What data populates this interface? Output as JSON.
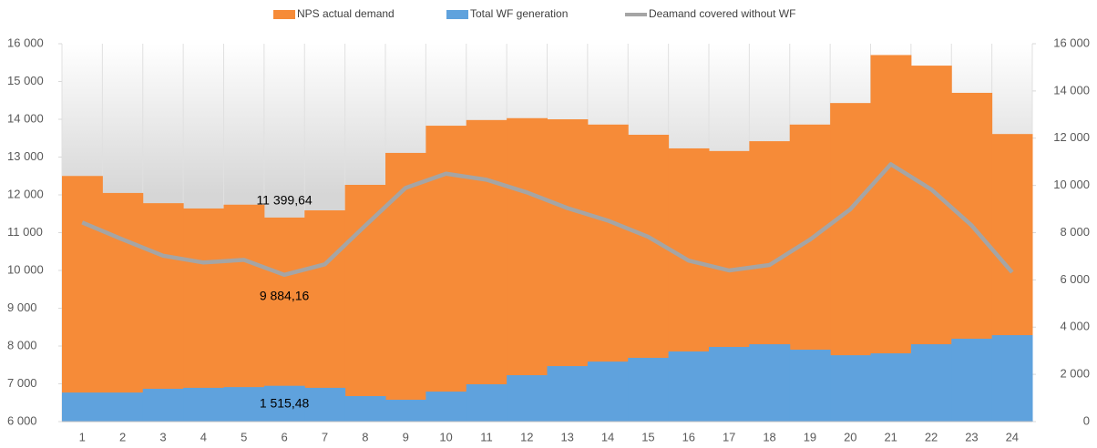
{
  "chart_data": {
    "type": "bar",
    "categories": [
      "1",
      "2",
      "3",
      "4",
      "5",
      "6",
      "7",
      "8",
      "9",
      "10",
      "11",
      "12",
      "13",
      "14",
      "15",
      "16",
      "17",
      "18",
      "19",
      "20",
      "21",
      "22",
      "23",
      "24"
    ],
    "series": [
      {
        "name": "NPS actual demand",
        "color": "#f68b38",
        "type": "bar",
        "values": [
          12500,
          12050,
          11780,
          11640,
          11740,
          11399.64,
          11590,
          12265,
          13110,
          13830,
          13980,
          14030,
          14000,
          13860,
          13590,
          13230,
          13160,
          13420,
          13860,
          14430,
          15700,
          15420,
          14700,
          13610
        ],
        "value_labels": [
          null,
          null,
          null,
          null,
          null,
          "11 399,64",
          null,
          null,
          null,
          null,
          null,
          null,
          null,
          null,
          null,
          null,
          null,
          null,
          null,
          null,
          null,
          null,
          null,
          null
        ]
      },
      {
        "name": "Total WF generation",
        "color": "#5fa2dd",
        "type": "bar",
        "axis": "y2",
        "values": [
          1230,
          1230,
          1390,
          1430,
          1460,
          1515.48,
          1430,
          1080,
          925,
          1270,
          1580,
          1965,
          2350,
          2540,
          2700,
          2970,
          3160,
          3275,
          3045,
          2810,
          2890,
          3275,
          3510,
          3660
        ],
        "value_labels": [
          null,
          null,
          null,
          null,
          null,
          "1 515,48",
          null,
          null,
          null,
          null,
          null,
          null,
          null,
          null,
          null,
          null,
          null,
          null,
          null,
          null,
          null,
          null,
          null,
          null
        ]
      },
      {
        "name": "Deamand covered without WF",
        "color": "#a5a5a5",
        "type": "line",
        "values": [
          11270,
          10820,
          10390,
          10210,
          10280,
          9884.16,
          10160,
          11185,
          12185,
          12560,
          12400,
          12065,
          11650,
          11320,
          10890,
          10260,
          10000,
          10145,
          10815,
          11620,
          12810,
          12145,
          11190,
          9950
        ],
        "value_labels": [
          null,
          null,
          null,
          null,
          null,
          "9 884,16",
          null,
          null,
          null,
          null,
          null,
          null,
          null,
          null,
          null,
          null,
          null,
          null,
          null,
          null,
          null,
          null,
          null,
          null
        ]
      }
    ],
    "ylim": [
      6000,
      16000
    ],
    "yticks": [
      {
        "value": 6000,
        "label": "6 000"
      },
      {
        "value": 7000,
        "label": "7 000"
      },
      {
        "value": 8000,
        "label": "8 000"
      },
      {
        "value": 9000,
        "label": "9 000"
      },
      {
        "value": 10000,
        "label": "10 000"
      },
      {
        "value": 11000,
        "label": "11 000"
      },
      {
        "value": 12000,
        "label": "12 000"
      },
      {
        "value": 13000,
        "label": "13 000"
      },
      {
        "value": 14000,
        "label": "14 000"
      },
      {
        "value": 15000,
        "label": "15 000"
      },
      {
        "value": 16000,
        "label": "16 000"
      }
    ],
    "y2lim": [
      0,
      16000
    ],
    "y2ticks": [
      0,
      {
        "value": 2000,
        "label": "2 000"
      },
      {
        "value": 4000,
        "label": "4 000"
      },
      {
        "value": 6000,
        "label": "6 000"
      },
      {
        "value": 8000,
        "label": "8 000"
      },
      {
        "value": 10000,
        "label": "10 000"
      },
      {
        "value": 12000,
        "label": "12 000"
      },
      {
        "value": 14000,
        "label": "14 000"
      },
      {
        "value": 16000,
        "label": "16 000"
      }
    ],
    "legend": "top",
    "grid": true
  }
}
